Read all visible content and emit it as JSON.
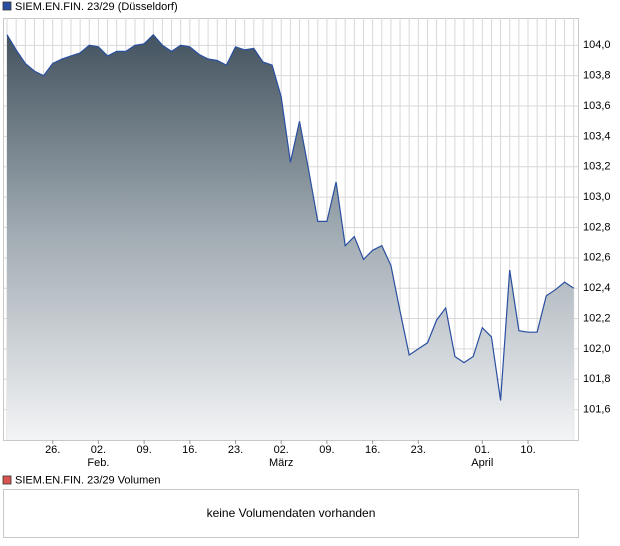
{
  "chart_data": {
    "type": "area",
    "title": "SIEM.EN.FIN. 23/29 (Düsseldorf)",
    "volume_title": "SIEM.EN.FIN. 23/29 Volumen",
    "volume_message": "keine Volumendaten vorhanden",
    "color": "#2a4fa0",
    "volume_color": "#d9534f",
    "x": [
      0,
      1,
      2,
      3,
      4,
      5,
      6,
      7,
      8,
      9,
      10,
      11,
      12,
      13,
      14,
      15,
      16,
      17,
      18,
      19,
      20,
      21,
      22,
      23,
      24,
      25,
      26,
      27,
      28,
      29,
      30,
      31,
      32,
      33,
      34,
      35,
      36,
      37,
      38,
      39,
      40,
      41,
      42,
      43,
      44,
      45,
      46,
      47,
      48,
      49,
      50,
      51,
      52,
      53,
      54,
      55,
      56,
      57,
      58,
      59,
      60,
      61,
      62
    ],
    "values": [
      104.07,
      103.97,
      103.88,
      103.83,
      103.8,
      103.88,
      103.91,
      103.93,
      103.95,
      104.0,
      103.99,
      103.93,
      103.96,
      103.96,
      104.0,
      104.01,
      104.07,
      104.0,
      103.96,
      104.0,
      103.99,
      103.94,
      103.91,
      103.9,
      103.87,
      103.99,
      103.97,
      103.98,
      103.89,
      103.87,
      103.66,
      103.23,
      103.5,
      103.18,
      102.84,
      102.84,
      103.1,
      102.68,
      102.74,
      102.59,
      102.65,
      102.68,
      102.55,
      102.25,
      101.96,
      102.0,
      102.04,
      102.19,
      102.27,
      101.95,
      101.91,
      101.95,
      102.14,
      102.08,
      101.66,
      102.52,
      102.12,
      102.11,
      102.11,
      102.35,
      102.39,
      102.44,
      102.4
    ],
    "xlim": [
      -0.33,
      62.47
    ],
    "xticks": [
      {
        "value": 5,
        "label": "26."
      },
      {
        "value": 10,
        "label": "02."
      },
      {
        "value": 15,
        "label": "09."
      },
      {
        "value": 20,
        "label": "16."
      },
      {
        "value": 25,
        "label": "23."
      },
      {
        "value": 30,
        "label": "02."
      },
      {
        "value": 35,
        "label": "09."
      },
      {
        "value": 40,
        "label": "16."
      },
      {
        "value": 45,
        "label": "23."
      },
      {
        "value": 52,
        "label": "01."
      },
      {
        "value": 57,
        "label": "10."
      }
    ],
    "month_labels": [
      {
        "value": 10,
        "label": "Feb."
      },
      {
        "value": 30,
        "label": "März"
      },
      {
        "value": 52,
        "label": "April"
      }
    ],
    "ylim": [
      101.4,
      104.18
    ],
    "yticks": [
      {
        "value": 101.6,
        "label": "101,6"
      },
      {
        "value": 101.8,
        "label": "101,8"
      },
      {
        "value": 102.0,
        "label": "102,0"
      },
      {
        "value": 102.2,
        "label": "102,2"
      },
      {
        "value": 102.4,
        "label": "102,4"
      },
      {
        "value": 102.6,
        "label": "102,6"
      },
      {
        "value": 102.8,
        "label": "102,8"
      },
      {
        "value": 103.0,
        "label": "103,0"
      },
      {
        "value": 103.2,
        "label": "103,2"
      },
      {
        "value": 103.4,
        "label": "103,4"
      },
      {
        "value": 103.6,
        "label": "103,6"
      },
      {
        "value": 103.8,
        "label": "103,8"
      },
      {
        "value": 104.0,
        "label": "104,0"
      }
    ],
    "grid": true
  }
}
